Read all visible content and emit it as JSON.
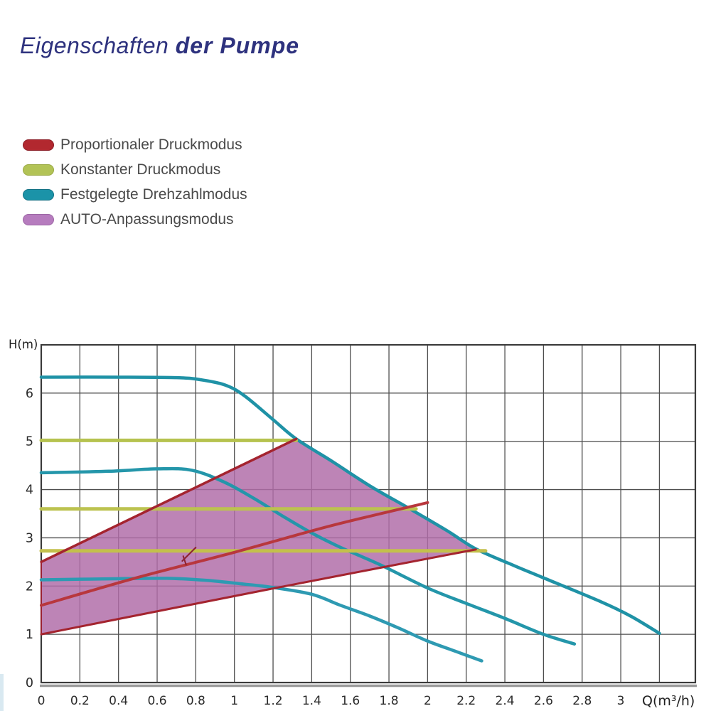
{
  "title": {
    "part1": "Eigenschaften",
    "part2": "der Pumpe",
    "color": "#2e327e"
  },
  "legend": {
    "items": [
      {
        "label": "Proportionaler Druckmodus",
        "color": "#b2282f",
        "border": "#8c1e27"
      },
      {
        "label": "Konstanter Druckmodus",
        "color": "#b2c356",
        "border": "#9aa944"
      },
      {
        "label": "Festgelegte Drehzahlmodus",
        "color": "#1b93a8",
        "border": "#137184"
      },
      {
        "label": "AUTO-Anpassungsmodus",
        "color": "#b67cbe",
        "border": "#9d66a5"
      }
    ]
  },
  "chart_data": {
    "type": "line",
    "title": "",
    "xlabel": "Q(m³/h)",
    "ylabel": "H(m)",
    "xlim": [
      0,
      3.4
    ],
    "ylim": [
      0,
      7
    ],
    "grid": true,
    "x_tick_labels": [
      "0",
      "0.2",
      "0.4",
      "0.6",
      "0.8",
      "1",
      "1.2",
      "1.4",
      "1.6",
      "1.8",
      "2",
      "2.2",
      "2.4",
      "2.6",
      "2.8",
      "3"
    ],
    "y_tick_labels": [
      "0",
      "1",
      "2",
      "3",
      "4",
      "5",
      "6"
    ],
    "series": [
      {
        "name": "fixed-speed-curve-III",
        "mode": "Festgelegte Drehzahlmodus",
        "color": "#1f92a6",
        "width": 4.5,
        "smooth": true,
        "points": [
          [
            0,
            6.33
          ],
          [
            0.4,
            6.33
          ],
          [
            0.7,
            6.32
          ],
          [
            0.82,
            6.28
          ],
          [
            0.95,
            6.17
          ],
          [
            1.05,
            5.95
          ],
          [
            1.2,
            5.45
          ],
          [
            1.32,
            5.05
          ],
          [
            1.5,
            4.6
          ],
          [
            1.7,
            4.08
          ],
          [
            1.9,
            3.62
          ],
          [
            2.1,
            3.15
          ],
          [
            2.25,
            2.77
          ],
          [
            2.45,
            2.42
          ],
          [
            2.6,
            2.17
          ],
          [
            2.9,
            1.67
          ],
          [
            3.05,
            1.38
          ],
          [
            3.2,
            1.02
          ]
        ]
      },
      {
        "name": "fixed-speed-curve-II",
        "mode": "Festgelegte Drehzahlmodus",
        "color": "#2496aa",
        "width": 4.5,
        "smooth": true,
        "points": [
          [
            0,
            4.35
          ],
          [
            0.35,
            4.38
          ],
          [
            0.6,
            4.43
          ],
          [
            0.78,
            4.4
          ],
          [
            0.95,
            4.15
          ],
          [
            1.1,
            3.82
          ],
          [
            1.25,
            3.45
          ],
          [
            1.4,
            3.1
          ],
          [
            1.55,
            2.8
          ],
          [
            1.75,
            2.45
          ],
          [
            2.0,
            1.96
          ],
          [
            2.2,
            1.64
          ],
          [
            2.4,
            1.33
          ],
          [
            2.6,
            1.0
          ],
          [
            2.76,
            0.8
          ]
        ]
      },
      {
        "name": "fixed-speed-curve-I",
        "mode": "Festgelegte Drehzahlmodus",
        "color": "#2e9ab2",
        "width": 4.5,
        "smooth": true,
        "points": [
          [
            0,
            2.13
          ],
          [
            0.35,
            2.15
          ],
          [
            0.65,
            2.16
          ],
          [
            0.85,
            2.12
          ],
          [
            1.05,
            2.04
          ],
          [
            1.2,
            1.97
          ],
          [
            1.4,
            1.83
          ],
          [
            1.55,
            1.6
          ],
          [
            1.7,
            1.38
          ],
          [
            1.85,
            1.13
          ],
          [
            2.0,
            0.86
          ],
          [
            2.15,
            0.64
          ],
          [
            2.28,
            0.45
          ]
        ]
      },
      {
        "name": "constant-pressure-high",
        "mode": "Konstanter Druckmodus",
        "color": "#b6c24f",
        "width": 5,
        "smooth": false,
        "points": [
          [
            0,
            5.02
          ],
          [
            1.32,
            5.02
          ]
        ]
      },
      {
        "name": "constant-pressure-mid",
        "mode": "Konstanter Druckmodus",
        "color": "#bcc24f",
        "width": 5,
        "smooth": false,
        "points": [
          [
            0,
            3.6
          ],
          [
            1.94,
            3.6
          ]
        ]
      },
      {
        "name": "constant-pressure-low",
        "mode": "Konstanter Druckmodus",
        "color": "#c3c04c",
        "width": 5,
        "smooth": false,
        "points": [
          [
            0,
            2.73
          ],
          [
            2.3,
            2.73
          ]
        ]
      },
      {
        "name": "proportional-pressure-high",
        "mode": "Proportionaler Druckmodus",
        "color": "#a4242f",
        "width": 3.5,
        "smooth": false,
        "points": [
          [
            0,
            2.5
          ],
          [
            1.32,
            5.05
          ]
        ]
      },
      {
        "name": "proportional-pressure-mid",
        "mode": "Proportionaler Druckmodus",
        "color": "#b8373d",
        "width": 4,
        "smooth": true,
        "points": [
          [
            0,
            1.6
          ],
          [
            0.5,
            2.18
          ],
          [
            1.0,
            2.7
          ],
          [
            1.5,
            3.25
          ],
          [
            2.0,
            3.73
          ]
        ]
      },
      {
        "name": "proportional-pressure-low",
        "mode": "Proportionaler Druckmodus",
        "color": "#a4242f",
        "width": 3,
        "smooth": true,
        "points": [
          [
            0,
            1.0
          ],
          [
            1.2,
            1.95
          ],
          [
            2.25,
            2.76
          ]
        ]
      }
    ],
    "region": {
      "name": "auto-adapt-area",
      "mode": "AUTO-Anpassungsmodus",
      "fill": "#b06da8",
      "fill_opacity": 0.84,
      "stroke": "#9a2133",
      "stroke_width": 2,
      "points": [
        [
          0,
          1.0
        ],
        [
          0,
          2.5
        ],
        [
          1.32,
          5.05
        ],
        [
          1.5,
          4.6
        ],
        [
          1.7,
          4.08
        ],
        [
          1.9,
          3.62
        ],
        [
          2.1,
          3.15
        ],
        [
          2.25,
          2.76
        ],
        [
          1.2,
          1.95
        ]
      ]
    },
    "annotations": [
      {
        "name": "pen-mark-stroke-1",
        "color": "#8c2130",
        "width": 2,
        "points": [
          [
            0.8,
            2.8
          ],
          [
            0.73,
            2.52
          ]
        ]
      },
      {
        "name": "pen-mark-stroke-2",
        "color": "#8c2130",
        "width": 2,
        "points": [
          [
            0.735,
            2.62
          ],
          [
            0.75,
            2.44
          ]
        ]
      }
    ]
  }
}
